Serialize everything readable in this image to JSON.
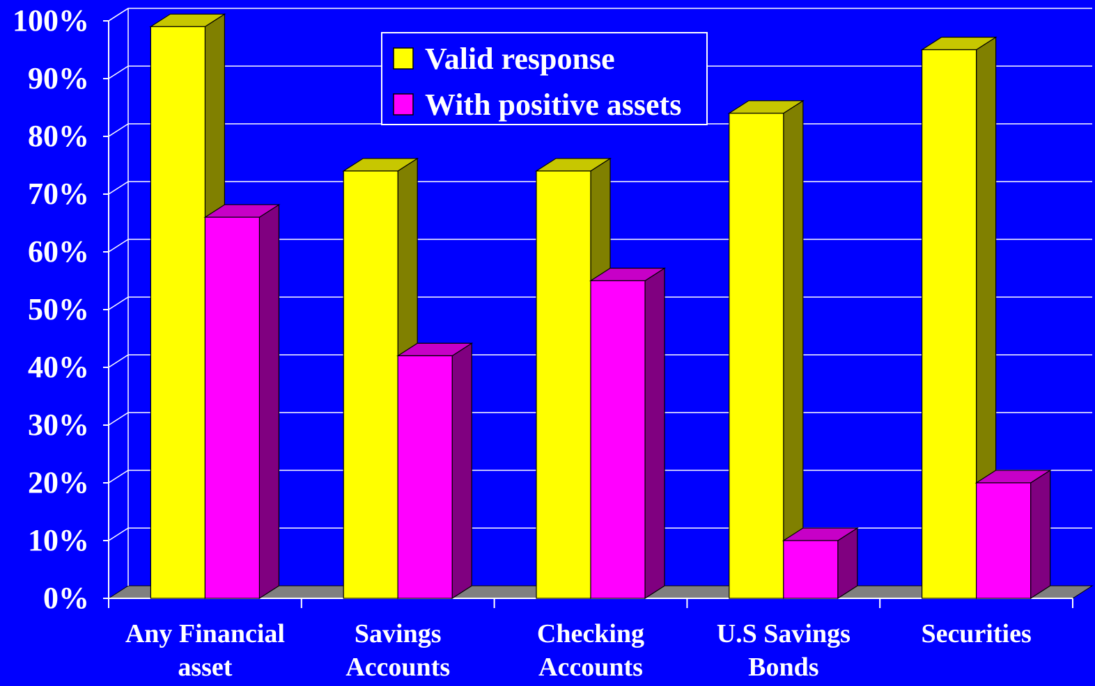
{
  "chart_data": {
    "type": "bar",
    "categories": [
      [
        "Any Financial",
        "asset"
      ],
      [
        "Savings",
        "Accounts"
      ],
      [
        "Checking",
        "Accounts"
      ],
      [
        "U.S Savings",
        "Bonds"
      ],
      [
        "Securities"
      ]
    ],
    "series": [
      {
        "name": "Valid response",
        "values": [
          99,
          74,
          74,
          84,
          95
        ],
        "color": "#FFFF00"
      },
      {
        "name": "With positive assets",
        "values": [
          66,
          42,
          55,
          10,
          20
        ],
        "color": "#FF00FF"
      }
    ],
    "y_ticks": [
      "0%",
      "10%",
      "20%",
      "30%",
      "40%",
      "50%",
      "60%",
      "70%",
      "80%",
      "90%",
      "100%"
    ],
    "ylim": [
      0,
      100
    ],
    "grid": true,
    "legend_position": "top-center",
    "style": "3d-column",
    "background_color": "#0000FF",
    "floor_color": "#808080"
  }
}
